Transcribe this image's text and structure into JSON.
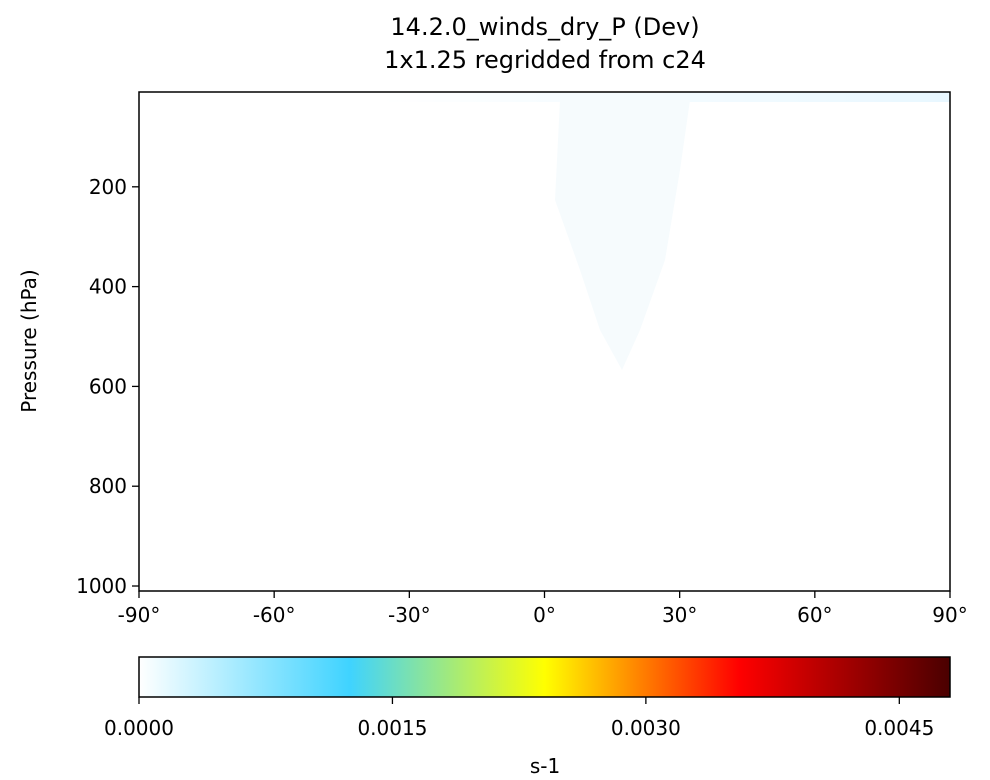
{
  "chart_data": {
    "type": "heatmap",
    "title": "14.2.0_winds_dry_P (Dev)",
    "subtitle": "1x1.25 regridded from c24",
    "xlabel": "",
    "ylabel": "Pressure (hPa)",
    "xlim": [
      -90,
      90
    ],
    "ylim": [
      1010,
      10
    ],
    "y_inverted": true,
    "x_ticks": [
      -90,
      -60,
      -30,
      0,
      30,
      60,
      90
    ],
    "x_tick_labels": [
      "-90°",
      "-60°",
      "-30°",
      "0°",
      "30°",
      "60°",
      "90°"
    ],
    "y_ticks": [
      200,
      400,
      600,
      800,
      1000
    ],
    "y_tick_labels": [
      "200",
      "400",
      "600",
      "800",
      "1000"
    ],
    "field_summary": "near-zero values everywhere; faint light-blue tint near top (low pressure) and a faint plume around 0° to 30° latitude extending down to ~550 hPa",
    "colorbar": {
      "label": "s-1",
      "range": [
        0.0,
        0.0048
      ],
      "ticks": [
        0.0,
        0.0015,
        0.003,
        0.0045
      ],
      "tick_labels": [
        "0.0000",
        "0.0015",
        "0.0030",
        "0.0045"
      ],
      "colormap": [
        "#ffffff",
        "#3fd3ff",
        "#ffff00",
        "#ff0000",
        "#4a0000"
      ]
    },
    "grid": false
  }
}
